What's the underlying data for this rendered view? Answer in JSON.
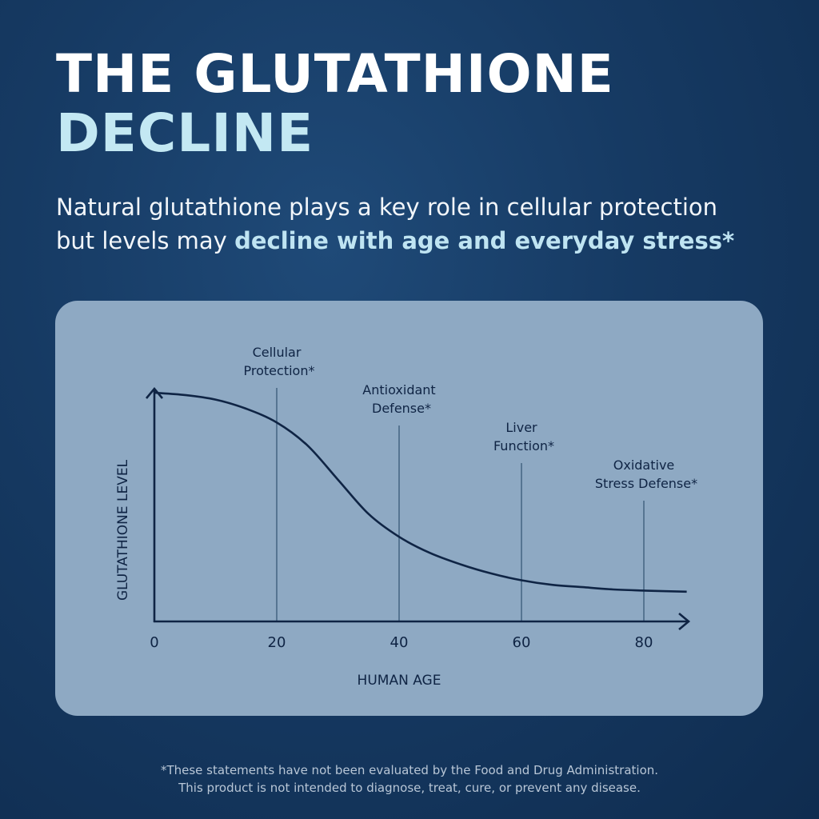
{
  "header": {
    "title_line1": "THE GLUTATHIONE",
    "title_line2": "DECLINE",
    "subtitle_plain": "Natural glutathione plays a key role in cellular protection but levels may ",
    "subtitle_highlight": "decline with age and everyday stress*"
  },
  "colors": {
    "background": "#163a63",
    "card": "#8ea9c3",
    "title_white": "#ffffff",
    "title_accent": "#c3e8f3",
    "ink": "#0f2444"
  },
  "chart_data": {
    "type": "line",
    "xlabel": "HUMAN AGE",
    "ylabel": "GLUTATHIONE LEVEL",
    "x_ticks": [
      "0",
      "20",
      "40",
      "60",
      "80"
    ],
    "xlim": [
      0,
      87
    ],
    "ylim": [
      0,
      1
    ],
    "y_ticks_shown": false,
    "grid": false,
    "series": [
      {
        "x": [
          0,
          5,
          10,
          15,
          20,
          25,
          30,
          35,
          40,
          45,
          50,
          55,
          60,
          65,
          70,
          75,
          80,
          87
        ],
        "y": [
          1.0,
          0.99,
          0.97,
          0.93,
          0.87,
          0.77,
          0.62,
          0.47,
          0.37,
          0.3,
          0.25,
          0.21,
          0.18,
          0.16,
          0.15,
          0.14,
          0.135,
          0.13
        ]
      }
    ],
    "annotations": [
      {
        "x": 20,
        "lines": [
          "Cellular",
          "Protection*"
        ]
      },
      {
        "x": 40,
        "lines": [
          "Antioxidant",
          "Defense*"
        ]
      },
      {
        "x": 60,
        "lines": [
          "Liver",
          "Function*"
        ]
      },
      {
        "x": 80,
        "lines": [
          "Oxidative",
          "Stress Defense*"
        ]
      }
    ]
  },
  "footnote": {
    "line1": "*These statements have not been evaluated by the Food and Drug Administration.",
    "line2": "This product is not intended to diagnose, treat, cure, or prevent any disease."
  }
}
